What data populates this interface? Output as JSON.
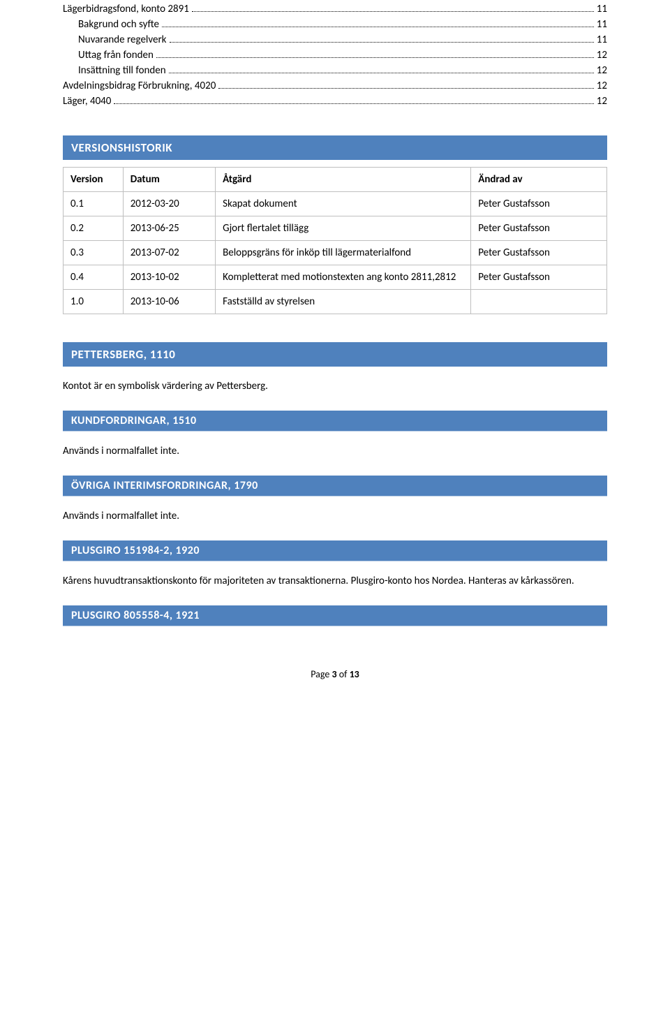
{
  "colors": {
    "bar_bg": "#4f81bd",
    "bar_fg": "#ffffff",
    "border": "#bfbfbf",
    "underline": "#b8cce4",
    "text": "#000000",
    "page_bg": "#ffffff"
  },
  "fonts": {
    "body_size_pt": 11,
    "heading_size_pt": 13,
    "family": "Calibri"
  },
  "toc": [
    {
      "label": "Lägerbidragsfond, konto 2891",
      "page": "11",
      "indent": 0
    },
    {
      "label": "Bakgrund och syfte",
      "page": "11",
      "indent": 1
    },
    {
      "label": "Nuvarande regelverk",
      "page": "11",
      "indent": 1
    },
    {
      "label": "Uttag från fonden",
      "page": "12",
      "indent": 1
    },
    {
      "label": "Insättning till fonden",
      "page": "12",
      "indent": 1
    },
    {
      "label": "Avdelningsbidrag Förbrukning, 4020",
      "page": "12",
      "indent": 0
    },
    {
      "label": "Läger, 4040",
      "page": "12",
      "indent": 0
    }
  ],
  "versionshistorik": {
    "title": "VERSIONSHISTORIK",
    "headers": {
      "version": "Version",
      "datum": "Datum",
      "atgard": "Åtgärd",
      "andrad": "Ändrad av"
    },
    "rows": [
      {
        "version": "0.1",
        "datum": "2012-03-20",
        "atgard": "Skapat dokument",
        "andrad": "Peter Gustafsson"
      },
      {
        "version": "0.2",
        "datum": "2013-06-25",
        "atgard": "Gjort flertalet tillägg",
        "andrad": "Peter Gustafsson"
      },
      {
        "version": "0.3",
        "datum": "2013-07-02",
        "atgard": "Beloppsgräns för inköp till lägermaterialfond",
        "andrad": "Peter Gustafsson"
      },
      {
        "version": "0.4",
        "datum": "2013-10-02",
        "atgard": "Kompletterat med motionstexten ang konto 2811,2812",
        "andrad": "Peter Gustafsson"
      },
      {
        "version": "1.0",
        "datum": "2013-10-06",
        "atgard": "Fastställd av styrelsen",
        "andrad": ""
      }
    ]
  },
  "sections": {
    "pettersberg": {
      "title": "PETTERSBERG, 1110",
      "text": "Kontot är en symbolisk värdering av Pettersberg."
    },
    "kundfordringar": {
      "title": "KUNDFORDRINGAR, 1510",
      "text": "Används i normalfallet inte."
    },
    "ovriga": {
      "title": "ÖVRIGA INTERIMSFORDRINGAR, 1790",
      "text": "Används i normalfallet inte."
    },
    "plusgiro1": {
      "title": "PLUSGIRO 151984-2, 1920",
      "text": "Kårens huvudtransaktionskonto för majoriteten av transaktionerna. Plusgiro-konto hos Nordea. Hanteras av kårkassören."
    },
    "plusgiro2": {
      "title": "PLUSGIRO 805558-4, 1921"
    }
  },
  "footer": {
    "label_prefix": "Page ",
    "current": "3",
    "label_mid": " of ",
    "total": "13"
  }
}
